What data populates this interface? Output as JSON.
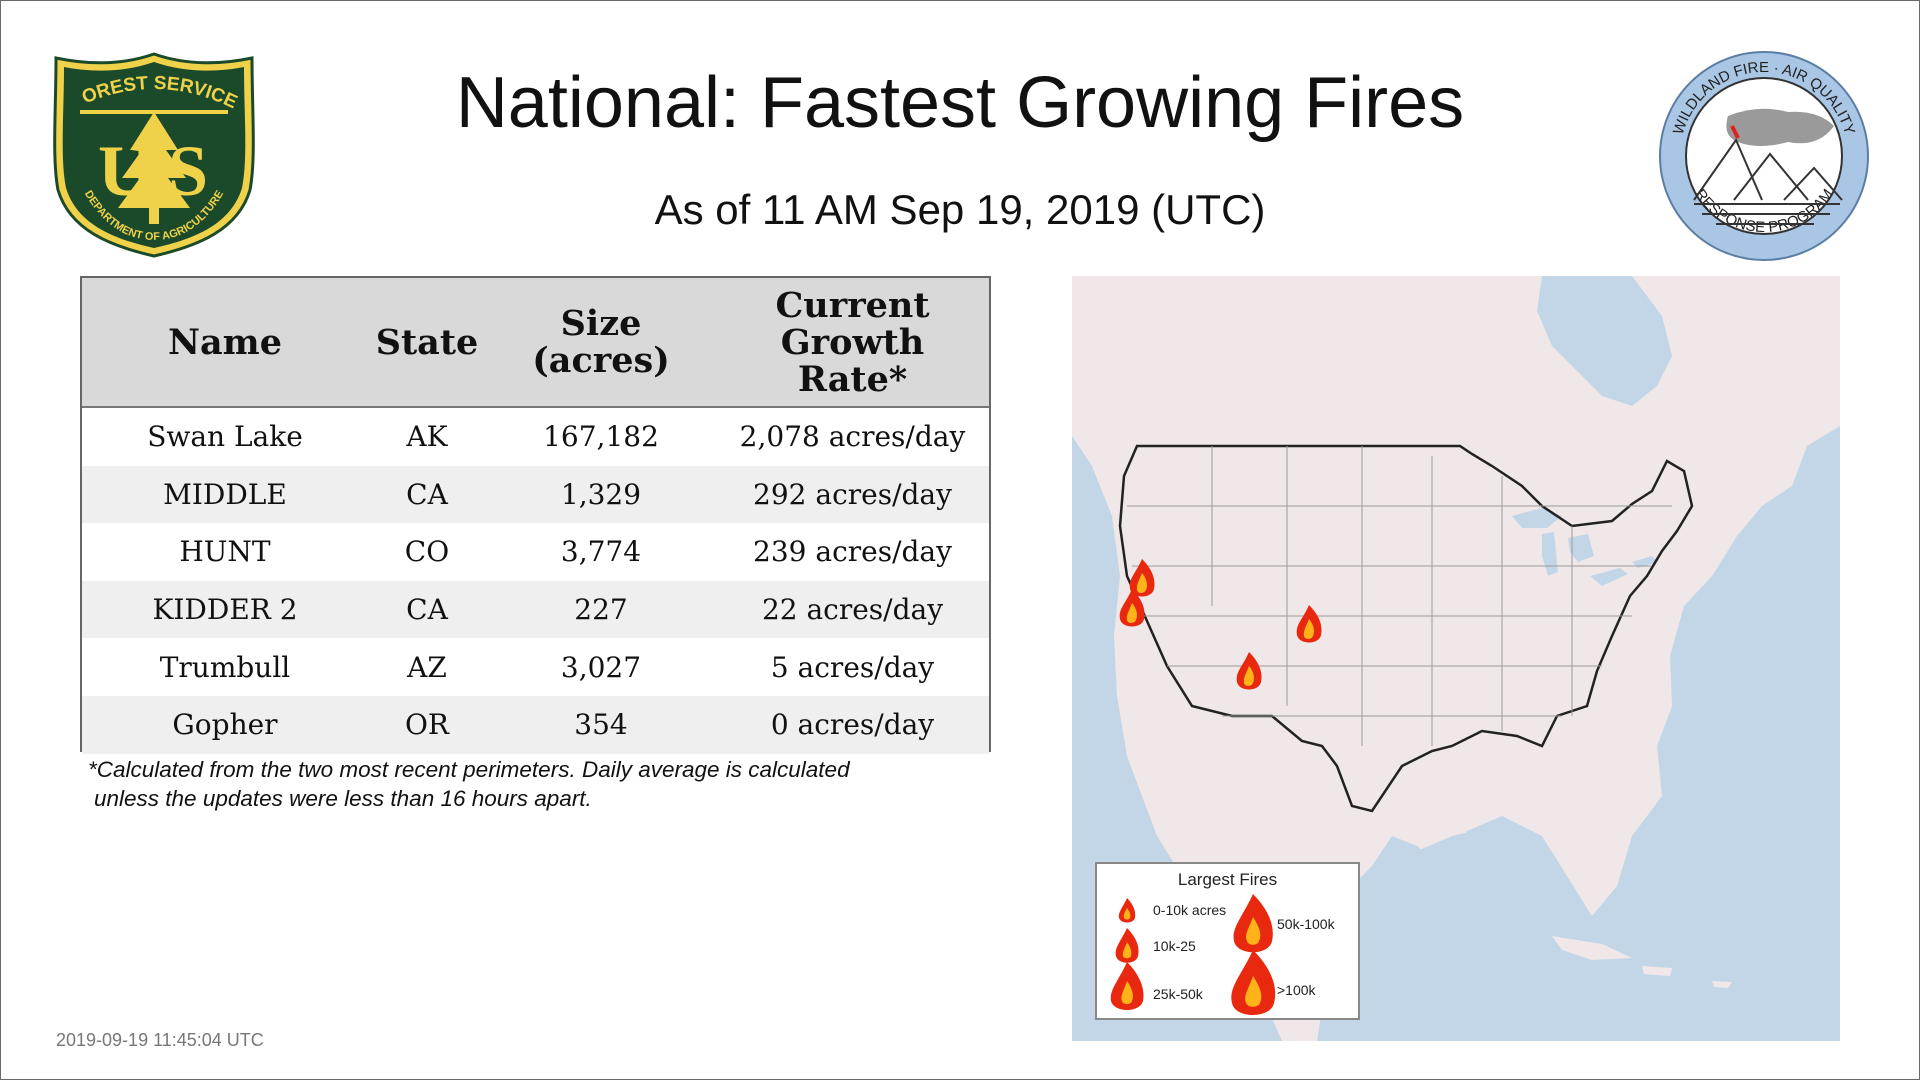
{
  "header": {
    "title": "National: Fastest Growing Fires",
    "subtitle": "As of 11 AM Sep 19, 2019 (UTC)"
  },
  "logos": {
    "left": {
      "top_text": "FOREST SERVICE",
      "letters": "U S",
      "bottom_text": "DEPARTMENT OF AGRICULTURE"
    },
    "right": {
      "top_text": "WILDLAND FIRE · AIR QUALITY",
      "bottom_text": "RESPONSE PROGRAM"
    }
  },
  "table": {
    "headers": [
      "Name",
      "State",
      "Size (acres)",
      "Current Growth Rate*"
    ],
    "rows": [
      [
        "Swan Lake",
        "AK",
        "167,182",
        "2,078 acres/day"
      ],
      [
        "MIDDLE",
        "CA",
        "1,329",
        "292 acres/day"
      ],
      [
        "HUNT",
        "CO",
        "3,774",
        "239 acres/day"
      ],
      [
        "KIDDER 2",
        "CA",
        "227",
        "22 acres/day"
      ],
      [
        "Trumbull",
        "AZ",
        "3,027",
        "5 acres/day"
      ],
      [
        "Gopher",
        "OR",
        "354",
        "0 acres/day"
      ]
    ]
  },
  "footnote": {
    "line1": "*Calculated from the two most recent perimeters. Daily average is calculated",
    "line2": "unless the updates were less than 16 hours apart."
  },
  "timestamp": "2019-09-19 11:45:04 UTC",
  "legend": {
    "title": "Largest Fires",
    "items": [
      "0-10k acres",
      "10k-25",
      "25k-50k",
      "50k-100k",
      ">100k"
    ]
  },
  "colors": {
    "forest_green": "#1b4a2a",
    "forest_gold": "#f0d24a",
    "badge_blue": "#a9c6e4",
    "water": "#c3d6e8",
    "land": "#f0e8e8",
    "fire_outer": "#e8290f",
    "fire_inner": "#ffb319"
  }
}
